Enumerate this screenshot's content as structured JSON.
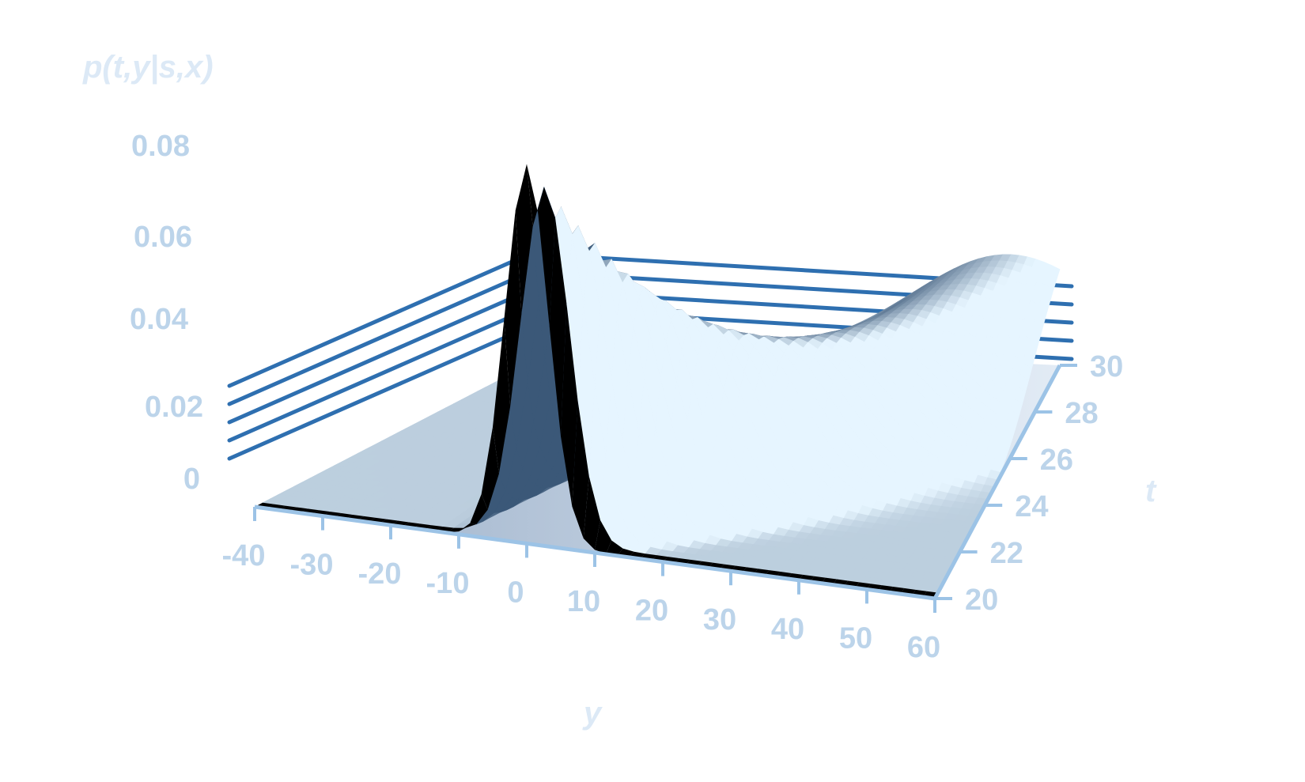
{
  "chart_data": {
    "type": "surface",
    "title": "",
    "zlabel": "p(t,y|s,x)",
    "xlabel": "y",
    "ylabel": "t",
    "x_ticks": [
      "-40",
      "-30",
      "-20",
      "-10",
      "0",
      "10",
      "20",
      "30",
      "40",
      "50",
      "60"
    ],
    "t_ticks": [
      "20",
      "22",
      "24",
      "26",
      "28",
      "30"
    ],
    "z_ticks": [
      "0",
      "0.02",
      "0.04",
      "0.06",
      "0.08"
    ],
    "xlim": [
      -40,
      60
    ],
    "tlim": [
      20,
      30
    ],
    "zlim": [
      0,
      0.08
    ],
    "grid": true,
    "surface": {
      "description_free_params": true,
      "peak_y": 0,
      "peak_t": 20,
      "peak_value": 0.08,
      "ridge_peak_y": 50,
      "ridge_peak_t": 30,
      "ridge_peak_value": 0.035
    },
    "colors": {
      "gridline": "#2e6fb0",
      "axis": "#9cc3e6",
      "surface_light": "#e6f2fc",
      "surface_dark": "#2b4a6a"
    }
  }
}
